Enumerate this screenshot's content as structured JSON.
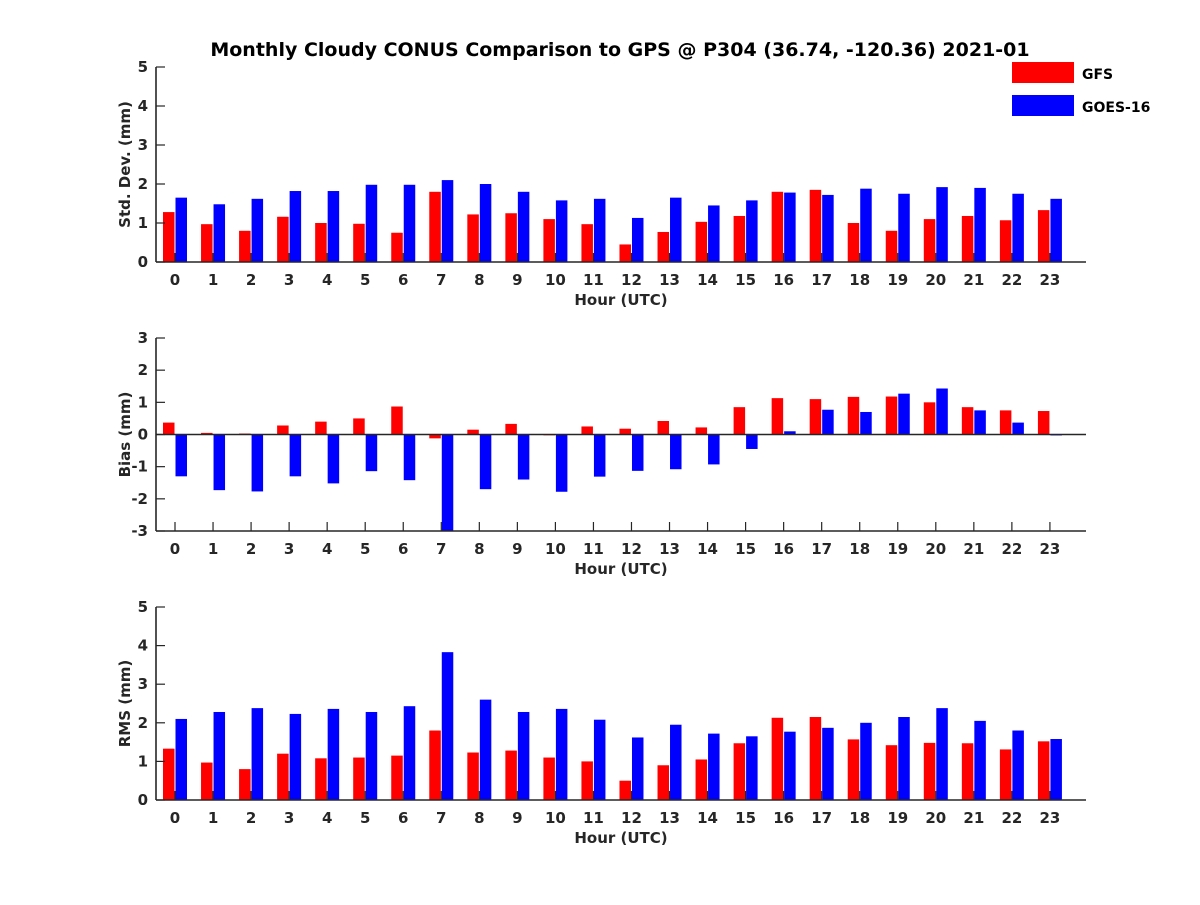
{
  "title": "Monthly Cloudy CONUS Comparison to GPS @ P304 (36.74, -120.36) 2021-01",
  "legend": [
    {
      "label": "GFS",
      "color": "#ff0000"
    },
    {
      "label": "GOES-16",
      "color": "#0000ff"
    }
  ],
  "chart_data": [
    {
      "type": "bar",
      "title": "Monthly Cloudy CONUS Comparison to GPS @ P304 (36.74, -120.36) 2021-01",
      "xlabel": "Hour (UTC)",
      "ylabel": "Std. Dev. (mm)",
      "ylim": [
        0,
        5
      ],
      "yticks": [
        0,
        1,
        2,
        3,
        4,
        5
      ],
      "grid": false,
      "legend_position": "top-right",
      "categories": [
        "0",
        "1",
        "2",
        "3",
        "4",
        "5",
        "6",
        "7",
        "8",
        "9",
        "10",
        "11",
        "12",
        "13",
        "14",
        "15",
        "16",
        "17",
        "18",
        "19",
        "20",
        "21",
        "22",
        "23"
      ],
      "series": [
        {
          "name": "GFS",
          "color": "#ff0000",
          "values": [
            1.28,
            0.97,
            0.8,
            1.16,
            1.0,
            0.98,
            0.75,
            1.8,
            1.22,
            1.25,
            1.1,
            0.97,
            0.45,
            0.77,
            1.03,
            1.18,
            1.8,
            1.85,
            1.0,
            0.8,
            1.1,
            1.18,
            1.07,
            1.33
          ]
        },
        {
          "name": "GOES-16",
          "color": "#0000ff",
          "values": [
            1.65,
            1.48,
            1.62,
            1.82,
            1.82,
            1.98,
            1.98,
            2.1,
            2.0,
            1.8,
            1.58,
            1.62,
            1.13,
            1.65,
            1.45,
            1.58,
            1.78,
            1.72,
            1.88,
            1.75,
            1.92,
            1.9,
            1.75,
            1.62
          ]
        }
      ]
    },
    {
      "type": "bar",
      "xlabel": "Hour (UTC)",
      "ylabel": "Bias (mm)",
      "ylim": [
        -3,
        3
      ],
      "yticks": [
        -3,
        -2,
        -1,
        0,
        1,
        2,
        3
      ],
      "grid": false,
      "categories": [
        "0",
        "1",
        "2",
        "3",
        "4",
        "5",
        "6",
        "7",
        "8",
        "9",
        "10",
        "11",
        "12",
        "13",
        "14",
        "15",
        "16",
        "17",
        "18",
        "19",
        "20",
        "21",
        "22",
        "23"
      ],
      "series": [
        {
          "name": "GFS",
          "color": "#ff0000",
          "values": [
            0.37,
            0.05,
            0.03,
            0.28,
            0.4,
            0.5,
            0.87,
            -0.12,
            0.15,
            0.33,
            0.0,
            0.25,
            0.18,
            0.42,
            0.22,
            0.85,
            1.13,
            1.1,
            1.17,
            1.18,
            1.0,
            0.85,
            0.75,
            0.73
          ]
        },
        {
          "name": "GOES-16",
          "color": "#0000ff",
          "values": [
            -1.3,
            -1.73,
            -1.77,
            -1.3,
            -1.52,
            -1.14,
            -1.42,
            -3.0,
            -1.7,
            -1.4,
            -1.78,
            -1.31,
            -1.13,
            -1.08,
            -0.93,
            -0.45,
            0.1,
            0.77,
            0.7,
            1.27,
            1.43,
            0.75,
            0.37,
            -0.03
          ]
        }
      ]
    },
    {
      "type": "bar",
      "xlabel": "Hour (UTC)",
      "ylabel": "RMS (mm)",
      "ylim": [
        0,
        5
      ],
      "yticks": [
        0,
        1,
        2,
        3,
        4,
        5
      ],
      "grid": false,
      "categories": [
        "0",
        "1",
        "2",
        "3",
        "4",
        "5",
        "6",
        "7",
        "8",
        "9",
        "10",
        "11",
        "12",
        "13",
        "14",
        "15",
        "16",
        "17",
        "18",
        "19",
        "20",
        "21",
        "22",
        "23"
      ],
      "series": [
        {
          "name": "GFS",
          "color": "#ff0000",
          "values": [
            1.33,
            0.97,
            0.8,
            1.2,
            1.08,
            1.1,
            1.15,
            1.8,
            1.23,
            1.28,
            1.1,
            1.0,
            0.5,
            0.9,
            1.05,
            1.47,
            2.13,
            2.15,
            1.57,
            1.42,
            1.48,
            1.47,
            1.31,
            1.52
          ]
        },
        {
          "name": "GOES-16",
          "color": "#0000ff",
          "values": [
            2.1,
            2.28,
            2.38,
            2.23,
            2.36,
            2.28,
            2.43,
            3.83,
            2.6,
            2.28,
            2.36,
            2.08,
            1.62,
            1.95,
            1.72,
            1.65,
            1.77,
            1.87,
            2.0,
            2.15,
            2.38,
            2.05,
            1.8,
            1.58
          ]
        }
      ]
    }
  ]
}
